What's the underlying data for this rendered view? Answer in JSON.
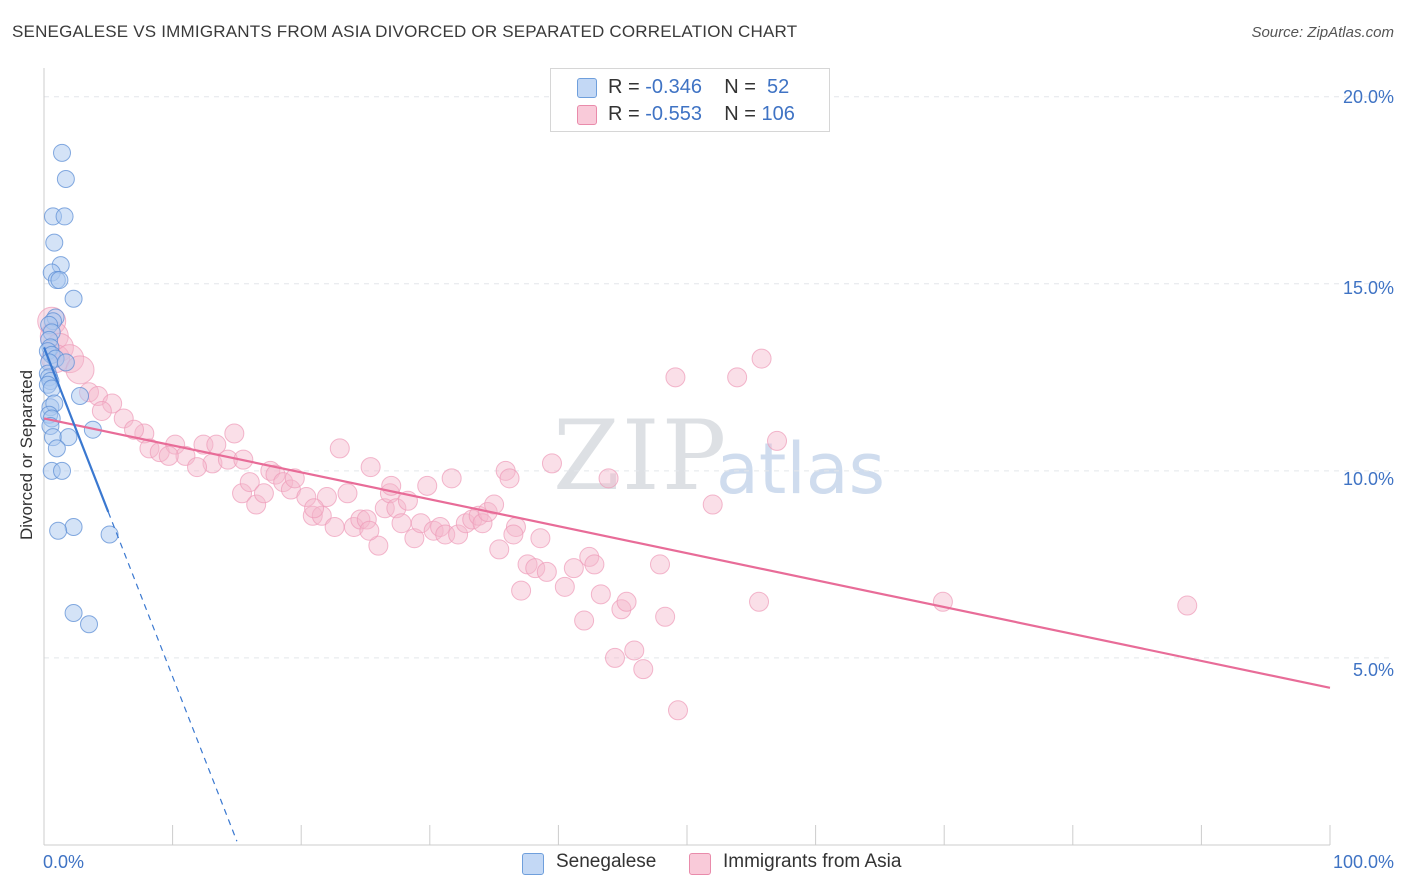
{
  "title": "SENEGALESE VS IMMIGRANTS FROM ASIA DIVORCED OR SEPARATED CORRELATION CHART",
  "source": "Source: ZipAtlas.com",
  "watermark": {
    "zip": "ZIP",
    "atlas": "atlas"
  },
  "legend": {
    "senegalese": {
      "r_label": "R = ",
      "r_value": "-0.346",
      "n_label": "N = ",
      "n_value": "52",
      "name": "Senegalese"
    },
    "asia": {
      "r_label": "R = ",
      "r_value": "-0.553",
      "n_label": "N = ",
      "n_value": "106",
      "name": "Immigrants from Asia"
    }
  },
  "chart_data": {
    "type": "scatter",
    "title": "SENEGALESE VS IMMIGRANTS FROM ASIA DIVORCED OR SEPARATED CORRELATION CHART",
    "xlabel": "",
    "ylabel": "Divorced or Separated",
    "xlim": [
      0,
      100
    ],
    "ylim": [
      0,
      20.5
    ],
    "x_tick_labels": [
      "0.0%",
      "100.0%"
    ],
    "y_ticks": [
      5,
      10,
      15,
      20
    ],
    "y_tick_labels": [
      "5.0%",
      "10.0%",
      "15.0%",
      "20.0%"
    ],
    "grid": true,
    "colors": {
      "senegalese": "#a9c8f0",
      "senegalese_line": "#3a78d0",
      "asia": "#f5b8cc",
      "asia_line": "#e86c98"
    },
    "series": [
      {
        "name": "Senegalese",
        "trend": {
          "x0": 0,
          "y0": 13.3,
          "x1": 5,
          "y1": 8.9,
          "dashed_to_x": 15
        },
        "points": [
          [
            1.4,
            18.5
          ],
          [
            1.7,
            17.8
          ],
          [
            0.7,
            16.8
          ],
          [
            1.6,
            16.8
          ],
          [
            0.8,
            16.1
          ],
          [
            1.3,
            15.5
          ],
          [
            0.6,
            15.3
          ],
          [
            1.0,
            15.1
          ],
          [
            1.2,
            15.1
          ],
          [
            2.3,
            14.6
          ],
          [
            0.9,
            14.1
          ],
          [
            0.7,
            14.0
          ],
          [
            0.4,
            13.9
          ],
          [
            0.6,
            13.7
          ],
          [
            0.4,
            13.5
          ],
          [
            0.5,
            13.3
          ],
          [
            0.3,
            13.2
          ],
          [
            0.6,
            13.1
          ],
          [
            0.9,
            13.0
          ],
          [
            0.4,
            12.9
          ],
          [
            1.7,
            12.9
          ],
          [
            0.3,
            12.6
          ],
          [
            0.4,
            12.5
          ],
          [
            0.5,
            12.4
          ],
          [
            0.3,
            12.3
          ],
          [
            0.6,
            12.2
          ],
          [
            2.8,
            12.0
          ],
          [
            0.5,
            11.7
          ],
          [
            0.8,
            11.8
          ],
          [
            0.4,
            11.5
          ],
          [
            0.6,
            11.4
          ],
          [
            0.5,
            11.2
          ],
          [
            3.8,
            11.1
          ],
          [
            0.7,
            10.9
          ],
          [
            1.9,
            10.9
          ],
          [
            1.0,
            10.6
          ],
          [
            0.6,
            10.0
          ],
          [
            1.4,
            10.0
          ],
          [
            2.3,
            8.5
          ],
          [
            1.1,
            8.4
          ],
          [
            5.1,
            8.3
          ],
          [
            2.3,
            6.2
          ],
          [
            3.5,
            5.9
          ]
        ]
      },
      {
        "name": "Immigrants from Asia",
        "trend": {
          "x0": 0,
          "y0": 11.4,
          "x1": 100,
          "y1": 4.2
        },
        "points": [
          [
            0.6,
            14.0
          ],
          [
            0.8,
            13.6
          ],
          [
            1.2,
            13.3
          ],
          [
            0.9,
            13.0
          ],
          [
            2.0,
            13.0
          ],
          [
            2.8,
            12.7
          ],
          [
            3.5,
            12.1
          ],
          [
            4.2,
            12.0
          ],
          [
            5.3,
            11.8
          ],
          [
            4.5,
            11.6
          ],
          [
            6.2,
            11.4
          ],
          [
            7.8,
            11.0
          ],
          [
            8.2,
            10.6
          ],
          [
            9.0,
            10.5
          ],
          [
            10.2,
            10.7
          ],
          [
            11.0,
            10.4
          ],
          [
            12.4,
            10.7
          ],
          [
            13.1,
            10.2
          ],
          [
            14.3,
            10.3
          ],
          [
            14.8,
            11.0
          ],
          [
            15.5,
            10.3
          ],
          [
            15.4,
            9.4
          ],
          [
            16.0,
            9.7
          ],
          [
            16.5,
            9.1
          ],
          [
            17.1,
            9.4
          ],
          [
            17.6,
            10.0
          ],
          [
            18.0,
            9.9
          ],
          [
            18.6,
            9.7
          ],
          [
            19.2,
            9.5
          ],
          [
            19.5,
            9.8
          ],
          [
            20.4,
            9.3
          ],
          [
            20.9,
            8.8
          ],
          [
            21.6,
            8.8
          ],
          [
            22.0,
            9.3
          ],
          [
            22.6,
            8.5
          ],
          [
            23.0,
            10.6
          ],
          [
            23.6,
            9.4
          ],
          [
            24.1,
            8.5
          ],
          [
            24.6,
            8.7
          ],
          [
            25.1,
            8.7
          ],
          [
            25.4,
            10.1
          ],
          [
            26.0,
            8.0
          ],
          [
            26.5,
            9.0
          ],
          [
            26.9,
            9.4
          ],
          [
            27.4,
            9.0
          ],
          [
            27.8,
            8.6
          ],
          [
            28.3,
            9.2
          ],
          [
            28.8,
            8.2
          ],
          [
            29.3,
            8.6
          ],
          [
            29.8,
            9.6
          ],
          [
            30.3,
            8.4
          ],
          [
            30.8,
            8.5
          ],
          [
            31.2,
            8.3
          ],
          [
            31.7,
            9.8
          ],
          [
            32.2,
            8.3
          ],
          [
            32.8,
            8.6
          ],
          [
            33.3,
            8.7
          ],
          [
            33.8,
            8.8
          ],
          [
            34.1,
            8.6
          ],
          [
            34.5,
            8.9
          ],
          [
            35.0,
            9.1
          ],
          [
            35.4,
            7.9
          ],
          [
            35.9,
            10.0
          ],
          [
            36.2,
            9.8
          ],
          [
            36.7,
            8.5
          ],
          [
            37.1,
            6.8
          ],
          [
            37.6,
            7.5
          ],
          [
            38.2,
            7.4
          ],
          [
            38.6,
            8.2
          ],
          [
            39.1,
            7.3
          ],
          [
            39.5,
            10.2
          ],
          [
            40.5,
            6.9
          ],
          [
            41.2,
            7.4
          ],
          [
            42.0,
            6.0
          ],
          [
            42.4,
            7.7
          ],
          [
            42.8,
            7.5
          ],
          [
            43.3,
            6.7
          ],
          [
            43.9,
            9.8
          ],
          [
            44.4,
            5.0
          ],
          [
            44.9,
            6.3
          ],
          [
            45.3,
            6.5
          ],
          [
            45.9,
            5.2
          ],
          [
            46.6,
            4.7
          ],
          [
            47.9,
            7.5
          ],
          [
            48.3,
            6.1
          ],
          [
            49.3,
            3.6
          ],
          [
            55.6,
            6.5
          ],
          [
            52.0,
            9.1
          ],
          [
            49.1,
            12.5
          ],
          [
            53.9,
            12.5
          ],
          [
            55.8,
            13.0
          ],
          [
            57.0,
            10.8
          ],
          [
            69.9,
            6.5
          ],
          [
            88.9,
            6.4
          ],
          [
            36.5,
            8.3
          ],
          [
            21.0,
            9.0
          ],
          [
            11.9,
            10.1
          ],
          [
            9.7,
            10.4
          ],
          [
            27.0,
            9.6
          ],
          [
            25.3,
            8.4
          ],
          [
            13.4,
            10.7
          ],
          [
            7.0,
            11.1
          ]
        ]
      }
    ]
  }
}
